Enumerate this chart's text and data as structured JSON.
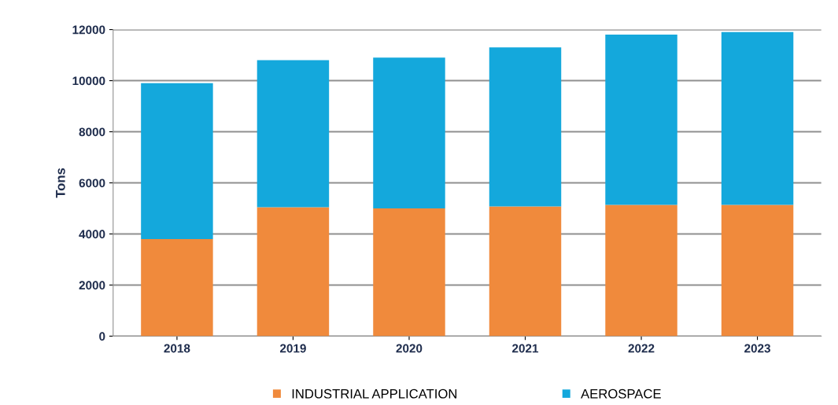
{
  "chart_data": {
    "type": "bar",
    "stacked": true,
    "ylabel": "Tons",
    "categories": [
      "2018",
      "2019",
      "2020",
      "2021",
      "2022",
      "2023"
    ],
    "series": [
      {
        "name": "INDUSTRIAL APPLICATION",
        "color": "#f08a3c",
        "values": [
          3800,
          5050,
          5000,
          5080,
          5140,
          5140
        ]
      },
      {
        "name": "AEROSPACE",
        "color": "#14a8dc",
        "values": [
          6100,
          5750,
          5900,
          6220,
          6660,
          6760
        ]
      }
    ],
    "ylim": [
      0,
      12000
    ],
    "yticks": [
      0,
      2000,
      4000,
      6000,
      8000,
      10000,
      12000
    ],
    "grid": "y",
    "legend": "bottom"
  }
}
